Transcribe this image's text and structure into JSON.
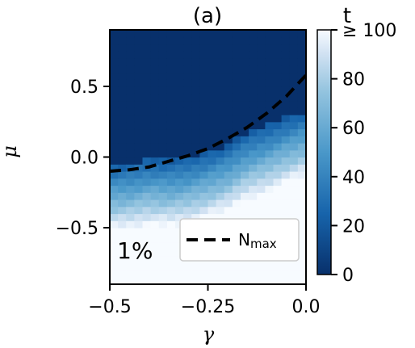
{
  "chart_data": {
    "type": "heatmap",
    "title": "(a)",
    "xlabel": "γ",
    "ylabel": "μ",
    "xlim": [
      -0.5,
      0.0
    ],
    "ylim": [
      -0.9,
      0.9
    ],
    "x_ticks": [
      {
        "value": -0.5,
        "label": "−0.5"
      },
      {
        "value": -0.25,
        "label": "−0.25"
      },
      {
        "value": 0.0,
        "label": "0.0"
      }
    ],
    "y_ticks": [
      {
        "value": 0.5,
        "label": "0.5"
      },
      {
        "value": 0.0,
        "label": "0.0"
      },
      {
        "value": -0.5,
        "label": "−0.5"
      }
    ],
    "colorbar": {
      "label": "t",
      "range": [
        0,
        100
      ],
      "colormap": "Blues_r",
      "low_color": "#08306b",
      "high_color": "#f7fbff",
      "ticks": [
        {
          "value": 0,
          "label": "0"
        },
        {
          "value": 20,
          "label": "20"
        },
        {
          "value": 40,
          "label": "40"
        },
        {
          "value": 60,
          "label": "60"
        },
        {
          "value": 80,
          "label": "80"
        },
        {
          "value": 100,
          "label": "≥ 100"
        }
      ]
    },
    "annotation": "1%",
    "legend": {
      "placement": "lower-right",
      "entries": [
        {
          "label": "N",
          "subscript": "max",
          "style": "dashed",
          "color": "#000000"
        }
      ]
    },
    "nmax_curve": {
      "x": [
        -0.5,
        -0.45,
        -0.4,
        -0.35,
        -0.3,
        -0.25,
        -0.2,
        -0.15,
        -0.1,
        -0.05,
        0.0
      ],
      "y": [
        -0.1,
        -0.09,
        -0.07,
        -0.03,
        0.01,
        0.06,
        0.13,
        0.21,
        0.31,
        0.43,
        0.58
      ]
    },
    "threshold_boundary": {
      "x": [
        -0.5,
        -0.45,
        -0.4,
        -0.35,
        -0.3,
        -0.25,
        -0.2,
        -0.15,
        -0.1,
        -0.05,
        0.0
      ],
      "y": [
        -0.05,
        -0.04,
        -0.01,
        -0.02,
        0.0,
        0.04,
        0.09,
        0.17,
        0.22,
        0.28,
        0.33
      ]
    }
  }
}
